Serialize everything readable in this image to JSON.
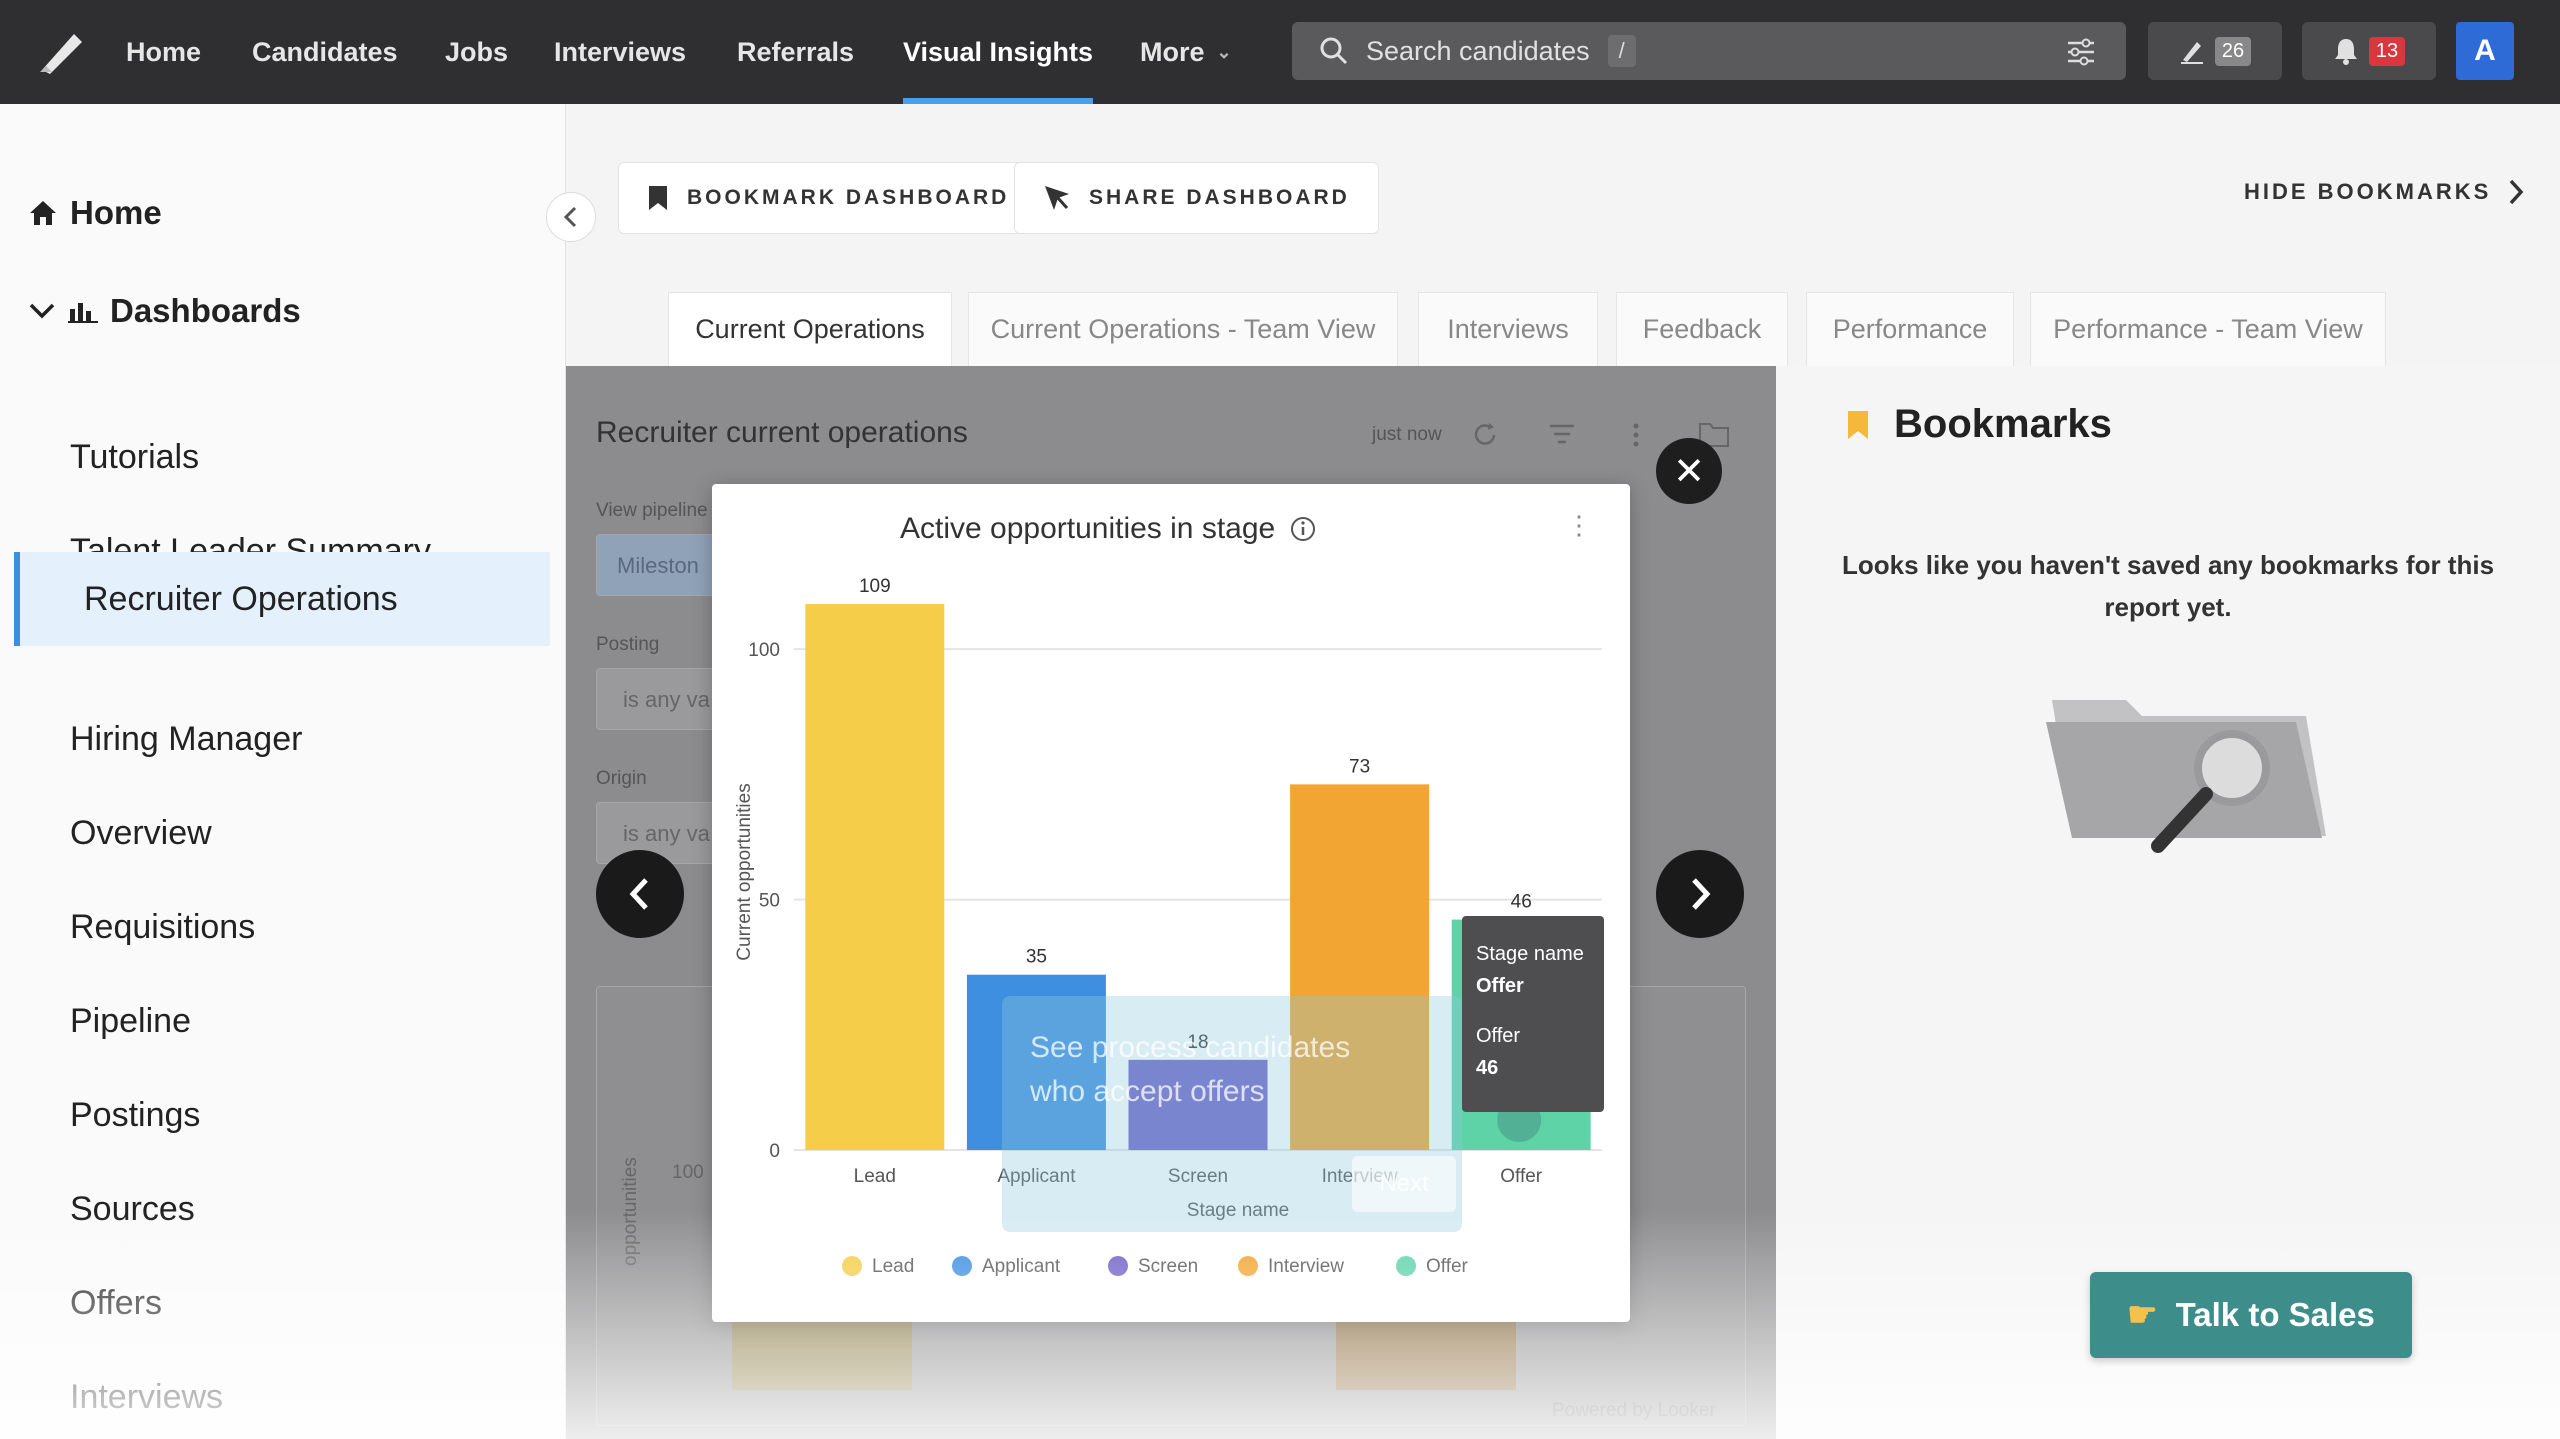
{
  "topnav": {
    "items": [
      "Home",
      "Candidates",
      "Jobs",
      "Interviews",
      "Referrals",
      "Visual Insights",
      "More"
    ],
    "active": "Visual Insights",
    "search_placeholder": "Search candidates",
    "search_shortcut": "/",
    "edits_count": "26",
    "notifications_count": "13",
    "avatar_initial": "A"
  },
  "sidebar": {
    "home": "Home",
    "dashboards": "Dashboards",
    "items": [
      "Tutorials",
      "Talent Leader Summary",
      "Recruiter Operations",
      "Hiring Manager",
      "Overview",
      "Requisitions",
      "Pipeline",
      "Postings",
      "Sources",
      "Offers",
      "Interviews"
    ],
    "active": "Recruiter Operations"
  },
  "header": {
    "bookmark_btn": "BOOKMARK DASHBOARD",
    "share_btn": "SHARE DASHBOARD",
    "hide_bookmarks": "HIDE BOOKMARKS"
  },
  "tabs": [
    "Current Operations",
    "Current Operations - Team View",
    "Interviews",
    "Feedback",
    "Performance",
    "Performance - Team View"
  ],
  "active_tab": "Current Operations",
  "dashboard": {
    "title": "Recruiter current operations",
    "updated": "just now",
    "filters": [
      {
        "label": "View pipeline",
        "value": "Mileston"
      },
      {
        "label": "Posting",
        "value": "is any va"
      },
      {
        "label": "Origin",
        "value": "is any va"
      }
    ],
    "bg_axis_tick": "100",
    "bg_axis_label": "opportunities",
    "powered_by": "Powered by Looker"
  },
  "bookmarks": {
    "title": "Bookmarks",
    "empty_message": "Looks like you haven't saved any bookmarks for this report yet."
  },
  "chart_data": {
    "type": "bar",
    "title": "Active opportunities in stage",
    "xlabel": "Stage name",
    "ylabel": "Current opportunities",
    "categories": [
      "Lead",
      "Applicant",
      "Screen",
      "Interview",
      "Offer"
    ],
    "values": [
      109,
      35,
      18,
      73,
      46
    ],
    "colors": [
      "#f5cd48",
      "#3f8fe0",
      "#6f62c8",
      "#f2a532",
      "#5ed3a8"
    ],
    "ylim": [
      0,
      115
    ],
    "yticks": [
      0,
      50,
      100
    ],
    "legend": [
      "Lead",
      "Applicant",
      "Screen",
      "Interview",
      "Offer"
    ],
    "legend_position": "bottom",
    "grid": true
  },
  "tooltip": {
    "key1": "Stage name",
    "val1": "Offer",
    "key2": "Offer",
    "val2": "46"
  },
  "onboarding": {
    "text_line1": "See process candidates",
    "text_line2": "who accept offers",
    "next": "Next"
  },
  "cta": {
    "label": "Talk to Sales"
  }
}
